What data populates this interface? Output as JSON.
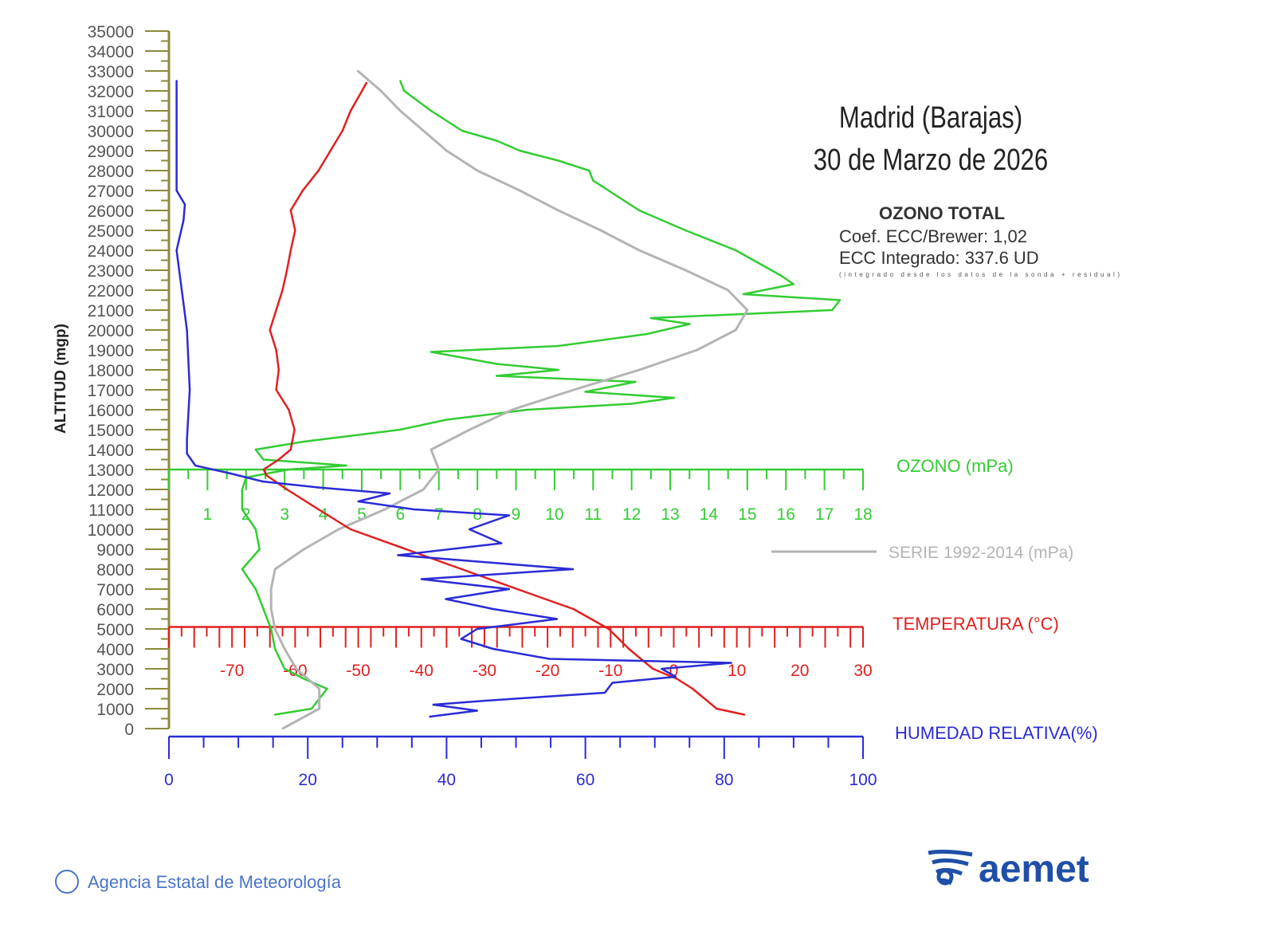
{
  "chart_data": {
    "type": "line",
    "title": "Madrid (Barajas)",
    "subtitle": "30 de Marzo de 2026",
    "ylabel": "ALTITUD (mgp)",
    "ylim": [
      0,
      35000
    ],
    "yticks": [
      0,
      1000,
      2000,
      3000,
      4000,
      5000,
      6000,
      7000,
      8000,
      9000,
      10000,
      11000,
      12000,
      13000,
      14000,
      15000,
      16000,
      17000,
      18000,
      19000,
      20000,
      21000,
      22000,
      23000,
      24000,
      25000,
      26000,
      27000,
      28000,
      29000,
      30000,
      31000,
      32000,
      33000,
      34000,
      35000
    ],
    "info": {
      "heading": "OZONO TOTAL",
      "coef": "Coef. ECC/Brewer: 1,02",
      "integrated": "ECC Integrado: 337.6 UD",
      "note": "(integrado desde los datos de la sonda + residual)"
    },
    "axes": [
      {
        "id": "ozone",
        "label": "OZONO (mPa)",
        "color": "#33cc33",
        "range": [
          0,
          18
        ],
        "ticks": [
          1,
          2,
          3,
          4,
          5,
          6,
          7,
          8,
          9,
          10,
          11,
          12,
          13,
          14,
          15,
          16,
          17,
          18
        ]
      },
      {
        "id": "temperature",
        "label": "TEMPERATURA (°C)",
        "color": "#e02020",
        "range": [
          -80,
          30
        ],
        "ticks": [
          -70,
          -60,
          -50,
          -40,
          -30,
          -20,
          -10,
          0,
          10,
          20,
          30
        ]
      },
      {
        "id": "humidity",
        "label": "HUMEDAD RELATIVA(%)",
        "color": "#2b2bd6",
        "range": [
          0,
          100
        ],
        "ticks": [
          0,
          20,
          40,
          60,
          80,
          100
        ]
      }
    ],
    "series": [
      {
        "name": "OZONO (mPa)",
        "axis": "ozone",
        "color": "#33cc33",
        "alt": [
          700,
          1000,
          2000,
          2500,
          3000,
          4000,
          5000,
          6000,
          7000,
          8000,
          9000,
          10000,
          11000,
          12000,
          12600,
          13000,
          13200,
          13500,
          14000,
          14400,
          15000,
          15500,
          16000,
          16300,
          16600,
          16900,
          17400,
          17700,
          18000,
          18300,
          18900,
          19200,
          19800,
          20300,
          20600,
          21000,
          21500,
          21800,
          22300,
          22700,
          24000,
          25000,
          26000,
          27000,
          27500,
          28000,
          28500,
          29000,
          29500,
          30000,
          31000,
          32000,
          32500
        ],
        "values": [
          2.75,
          3.7,
          4.1,
          3.5,
          3.0,
          2.75,
          2.65,
          2.45,
          2.25,
          1.9,
          2.35,
          2.25,
          1.9,
          1.9,
          2.0,
          3.1,
          4.6,
          2.45,
          2.25,
          3.5,
          6.0,
          7.2,
          9.3,
          12.0,
          13.1,
          10.8,
          12.1,
          8.5,
          10.1,
          8.5,
          6.8,
          10.1,
          12.4,
          13.5,
          12.5,
          17.2,
          17.4,
          14.9,
          16.2,
          15.9,
          14.7,
          13.4,
          12.2,
          11.4,
          11.0,
          10.9,
          10.1,
          9.1,
          8.5,
          7.6,
          6.8,
          6.1,
          6.0
        ]
      },
      {
        "name": "SERIE 1992-2014 (mPa)",
        "axis": "ozone",
        "color": "#b4b4b4",
        "alt": [
          0,
          1000,
          2000,
          3000,
          4000,
          5000,
          6000,
          7000,
          8000,
          9000,
          10000,
          11000,
          12000,
          13000,
          14000,
          15000,
          16000,
          17000,
          18000,
          19000,
          20000,
          21000,
          22000,
          23000,
          24000,
          25000,
          26000,
          27000,
          28000,
          29000,
          30000,
          31000,
          32000,
          33000
        ],
        "values": [
          2.95,
          3.9,
          3.9,
          3.3,
          3.0,
          2.75,
          2.65,
          2.65,
          2.75,
          3.5,
          4.4,
          5.6,
          6.6,
          7.0,
          6.8,
          7.8,
          8.9,
          10.5,
          12.2,
          13.7,
          14.7,
          15.0,
          14.5,
          13.4,
          12.2,
          11.2,
          10.1,
          9.1,
          8.0,
          7.2,
          6.6,
          6.0,
          5.5,
          4.9
        ]
      },
      {
        "name": "TEMPERATURA (°C)",
        "axis": "temperature",
        "color": "#e02020",
        "alt": [
          700,
          1000,
          2000,
          2500,
          3000,
          4000,
          5000,
          6000,
          7000,
          8000,
          9000,
          10000,
          11000,
          12000,
          12700,
          13000,
          13500,
          14000,
          15000,
          16000,
          17000,
          18000,
          19000,
          20000,
          21000,
          22000,
          23000,
          24000,
          25000,
          26000,
          27000,
          28000,
          29000,
          30000,
          31000,
          32000,
          32400
        ],
        "values": [
          11.2,
          6.8,
          3.0,
          0.5,
          -3.3,
          -7.1,
          -10.3,
          -15.9,
          -24.8,
          -33.6,
          -42.4,
          -51.2,
          -56.3,
          -61.3,
          -64.5,
          -65,
          -62.6,
          -60.7,
          -60.1,
          -61,
          -63,
          -62.6,
          -63,
          -64,
          -63,
          -62,
          -61.3,
          -60.7,
          -60,
          -60.7,
          -58.8,
          -56.3,
          -54.4,
          -52.5,
          -51.2,
          -49.4,
          -48.7
        ]
      },
      {
        "name": "HUMEDAD RELATIVA(%)",
        "axis": "humidity",
        "color": "#2b2bd6",
        "alt": [
          600,
          900,
          1200,
          1400,
          1800,
          2300,
          2600,
          3000,
          3300,
          3500,
          4000,
          4500,
          5000,
          5500,
          6000,
          6500,
          7000,
          7500,
          8000,
          8700,
          9300,
          10000,
          10700,
          11000,
          11400,
          11800,
          12100,
          12400,
          12800,
          13200,
          13800,
          14500,
          17000,
          20000,
          24000,
          25500,
          26300,
          27000,
          32500
        ],
        "values": [
          37.6,
          44.4,
          38.1,
          45.6,
          62.8,
          63.9,
          73,
          71,
          81,
          54.8,
          46.7,
          42.1,
          44.4,
          55.9,
          46.7,
          39.9,
          49,
          36.4,
          58.2,
          33,
          47.9,
          43.3,
          49,
          35.3,
          27.3,
          31.8,
          21.5,
          13.5,
          8.9,
          3.8,
          2.6,
          2.6,
          3.0,
          2.6,
          1.1,
          2.1,
          2.3,
          1.1,
          1.1
        ]
      }
    ]
  },
  "footer": {
    "copyright": "© Agencia Estatal de Meteorología",
    "logo_text": "aemet"
  }
}
